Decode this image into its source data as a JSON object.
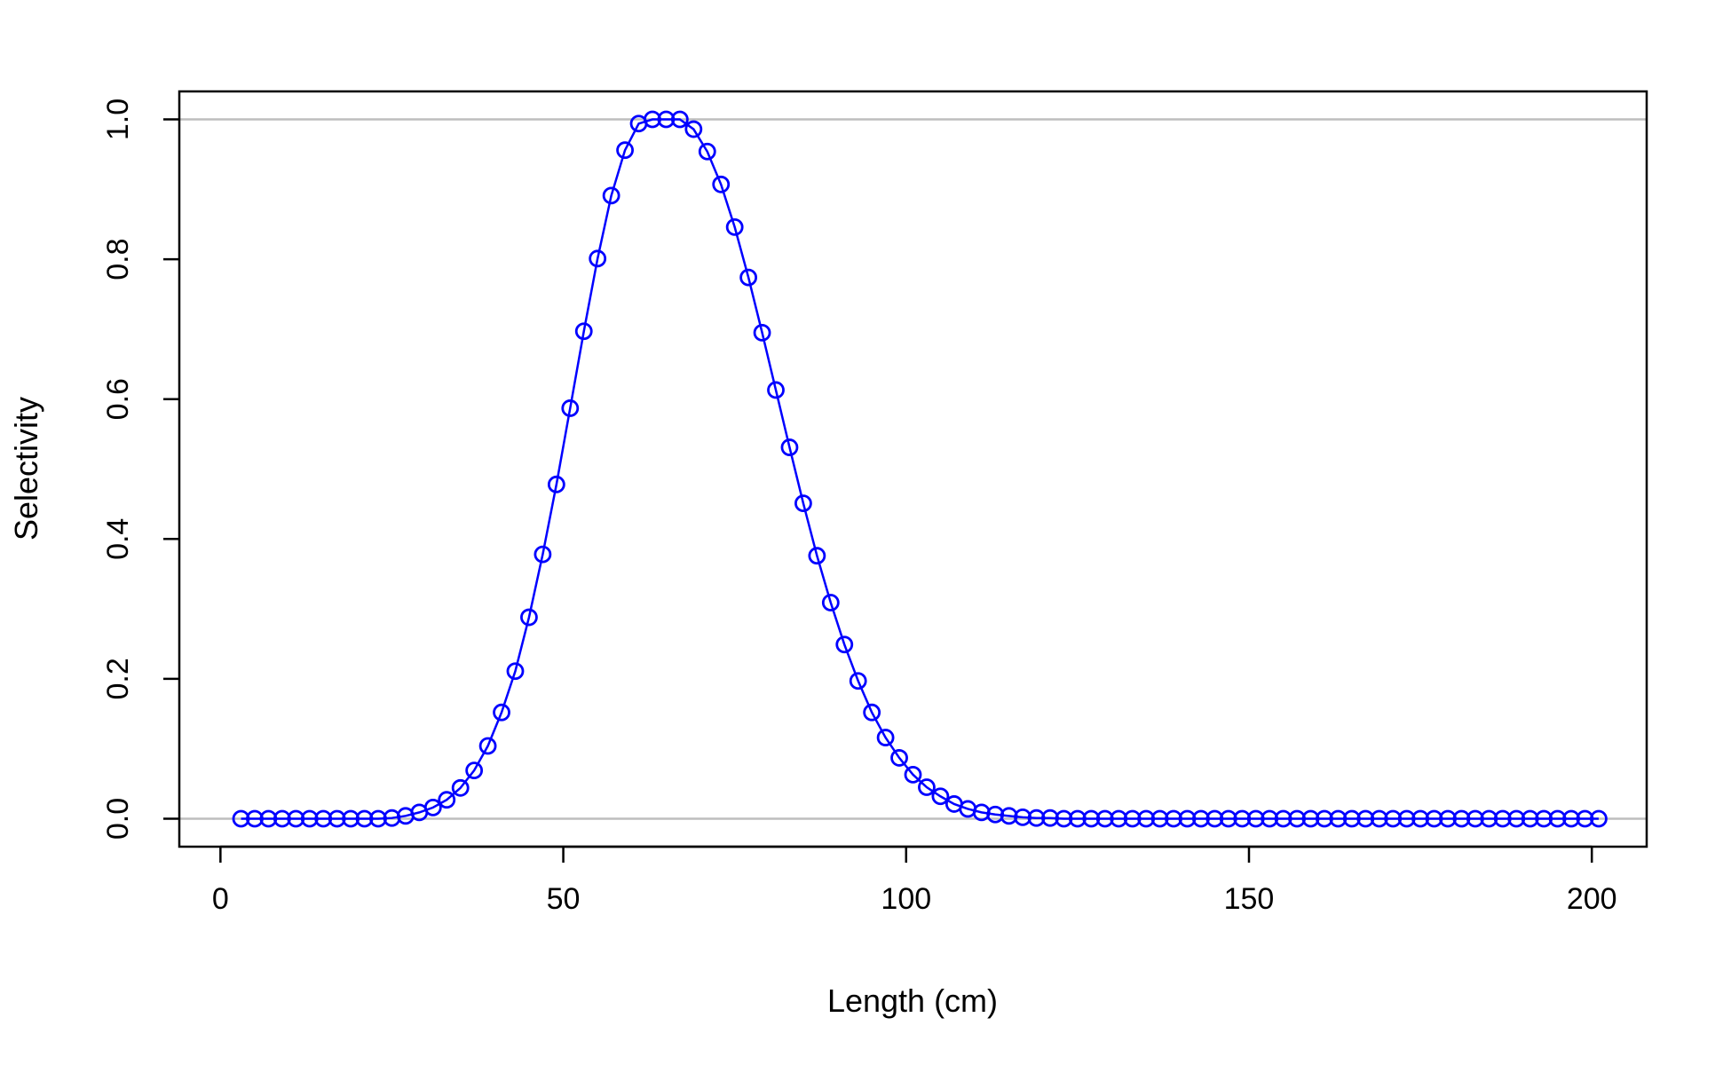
{
  "chart_data": {
    "type": "line",
    "xlabel": "Length (cm)",
    "ylabel": "Selectivity",
    "xlim": [
      -6,
      208
    ],
    "ylim": [
      -0.04,
      1.04
    ],
    "x_ticks": [
      0,
      50,
      100,
      150,
      200
    ],
    "x_tick_labels": [
      "0",
      "50",
      "100",
      "150",
      "200"
    ],
    "y_ticks": [
      0,
      0.2,
      0.4,
      0.6,
      0.8,
      1.0
    ],
    "y_tick_labels": [
      "0.0",
      "0.2",
      "0.4",
      "0.6",
      "0.8",
      "1.0"
    ],
    "reference_lines": [
      0,
      1
    ],
    "grid": false,
    "legend": "none",
    "series": [
      {
        "marker": "open-circle",
        "color": "#0000ff",
        "x": [
          3,
          5,
          7,
          9,
          11,
          13,
          15,
          17,
          19,
          21,
          23,
          25,
          27,
          29,
          31,
          33,
          35,
          37,
          39,
          41,
          43,
          45,
          47,
          49,
          51,
          53,
          55,
          57,
          59,
          61,
          63,
          65,
          67,
          69,
          71,
          73,
          75,
          77,
          79,
          81,
          83,
          85,
          87,
          89,
          91,
          93,
          95,
          97,
          99,
          101,
          103,
          105,
          107,
          109,
          111,
          113,
          115,
          117,
          119,
          121,
          123,
          125,
          127,
          129,
          131,
          133,
          135,
          137,
          139,
          141,
          143,
          145,
          147,
          149,
          151,
          153,
          155,
          157,
          159,
          161,
          163,
          165,
          167,
          169,
          171,
          173,
          175,
          177,
          179,
          181,
          183,
          185,
          187,
          189,
          191,
          193,
          195,
          197,
          199,
          201
        ],
        "y": [
          0.0,
          0.0,
          0.0,
          0.0,
          0.0,
          0.0,
          0.0,
          0.0,
          0.0,
          0.0,
          0.0,
          0.001,
          0.004,
          0.009,
          0.016,
          0.027,
          0.044,
          0.069,
          0.104,
          0.152,
          0.211,
          0.288,
          0.378,
          0.478,
          0.587,
          0.697,
          0.801,
          0.891,
          0.956,
          0.994,
          1.0,
          1.0,
          1.0,
          0.986,
          0.954,
          0.907,
          0.846,
          0.774,
          0.695,
          0.613,
          0.531,
          0.451,
          0.376,
          0.309,
          0.249,
          0.197,
          0.152,
          0.116,
          0.087,
          0.063,
          0.045,
          0.032,
          0.021,
          0.014,
          0.009,
          0.006,
          0.004,
          0.002,
          0.001,
          0.001,
          0.0,
          0.0,
          0.0,
          0.0,
          0.0,
          0.0,
          0.0,
          0.0,
          0.0,
          0.0,
          0.0,
          0.0,
          0.0,
          0.0,
          0.0,
          0.0,
          0.0,
          0.0,
          0.0,
          0.0,
          0.0,
          0.0,
          0.0,
          0.0,
          0.0,
          0.0,
          0.0,
          0.0,
          0.0,
          0.0,
          0.0,
          0.0,
          0.0,
          0.0,
          0.0,
          0.0,
          0.0,
          0.0,
          0.0,
          0.0
        ]
      }
    ]
  }
}
